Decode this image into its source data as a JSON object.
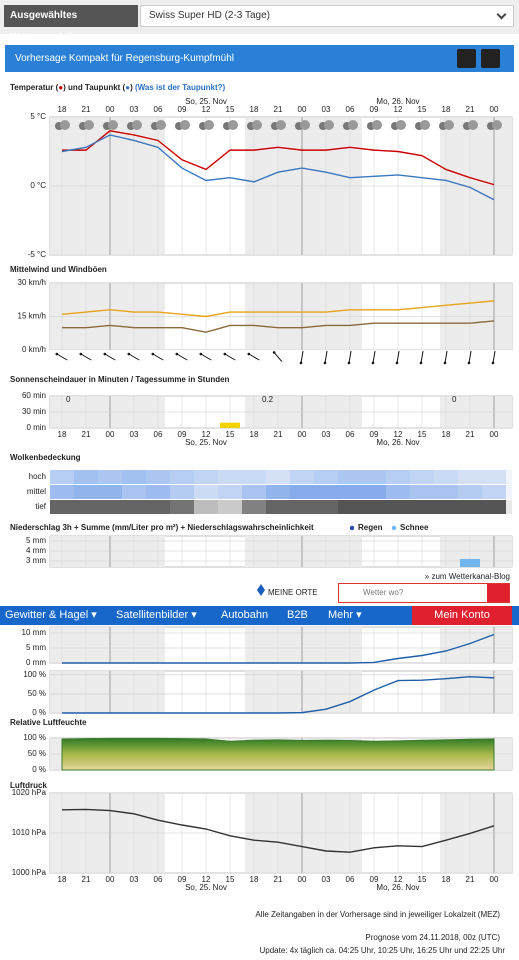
{
  "header": {
    "model_label": "Ausgewähltes Wettermodell:",
    "model_value": "Swiss Super HD (2-3 Tage)",
    "forecast_title": "Vorhersage Kompakt für Regensburg-Kumpfmühl"
  },
  "time_axis": {
    "hours": [
      "18",
      "21",
      "00",
      "03",
      "06",
      "09",
      "12",
      "15",
      "18",
      "21",
      "00",
      "03",
      "06",
      "09",
      "12",
      "15",
      "18",
      "21",
      "00"
    ],
    "days": [
      "So, 25. Nov",
      "Mo, 26. Nov"
    ]
  },
  "chart_data": [
    {
      "type": "line",
      "title_parts": [
        "Temperatur (",
        "●",
        ") und Taupunkt (",
        "●",
        ")"
      ],
      "link": "(Was ist der Taupunkt?)",
      "ylim": [
        -5,
        5
      ],
      "yticks": [
        {
          "value": 5,
          "label": "5 °C"
        },
        {
          "value": 0,
          "label": "0 °C"
        },
        {
          "value": -5,
          "label": "-5 °C"
        }
      ],
      "series": [
        {
          "color": "#cc0000",
          "values": [
            2.6,
            2.6,
            4.0,
            3.7,
            3.3,
            1.9,
            1.2,
            2.6,
            2.6,
            2.8,
            2.6,
            2.6,
            2.8,
            2.6,
            2.5,
            2.2,
            1.2,
            0.6,
            0.1
          ]
        },
        {
          "color": "#3a78c0",
          "values": [
            2.5,
            2.8,
            3.7,
            3.3,
            2.8,
            1.3,
            0.4,
            0.6,
            0.3,
            1.0,
            1.3,
            1.0,
            0.6,
            0.7,
            0.8,
            0.6,
            0.4,
            -0.1,
            -1.0
          ]
        }
      ]
    },
    {
      "type": "line",
      "title": "Mittelwind und Windböen",
      "ylim": [
        0,
        30
      ],
      "yticks": [
        {
          "value": 30,
          "label": "30 km/h"
        },
        {
          "value": 15,
          "label": "15 km/h"
        },
        {
          "value": 0,
          "label": "0 km/h"
        }
      ],
      "series": [
        {
          "color": "#e8a317",
          "values": [
            16,
            17,
            18,
            17,
            17,
            16,
            15,
            17,
            17,
            17,
            17,
            17,
            18,
            18,
            18,
            19,
            20,
            21,
            22
          ]
        },
        {
          "color": "#8a6a3a",
          "values": [
            10,
            10,
            11,
            10,
            10,
            10,
            8,
            11,
            11,
            10,
            10,
            11,
            11,
            12,
            12,
            12,
            12,
            12,
            13
          ]
        }
      ],
      "directions": [
        120,
        120,
        120,
        120,
        120,
        120,
        120,
        120,
        120,
        140,
        10,
        10,
        10,
        10,
        10,
        10,
        10,
        10,
        10
      ]
    },
    {
      "type": "bar",
      "title": "Sonnenscheindauer in Minuten / Tagessumme in Stunden",
      "ylim": [
        0,
        60
      ],
      "yticks": [
        {
          "value": 60,
          "label": "60 min"
        },
        {
          "value": 30,
          "label": "30 min"
        },
        {
          "value": 0,
          "label": "0 min"
        }
      ],
      "color": "#f2d200",
      "values": [
        0,
        0,
        0,
        0,
        0,
        0,
        0,
        10,
        0,
        0,
        0,
        0,
        0,
        0,
        0,
        0,
        0,
        0,
        0
      ],
      "daily_sums": [
        0,
        0.2,
        0
      ]
    },
    {
      "type": "heatmap",
      "title": "Wolkenbedeckung",
      "rows": [
        {
          "name": "hoch",
          "color": "#8fb4ee",
          "values": [
            60,
            80,
            70,
            80,
            70,
            60,
            50,
            40,
            40,
            30,
            50,
            60,
            70,
            70,
            60,
            50,
            40,
            30,
            30
          ]
        },
        {
          "name": "mittel",
          "color": "#7aa4ea",
          "values": [
            70,
            80,
            80,
            60,
            70,
            50,
            30,
            40,
            60,
            80,
            90,
            90,
            90,
            90,
            70,
            60,
            60,
            50,
            40
          ]
        },
        {
          "name": "tief",
          "color": "#555555",
          "values": [
            90,
            90,
            90,
            90,
            90,
            80,
            30,
            20,
            70,
            90,
            90,
            90,
            100,
            100,
            100,
            100,
            100,
            100,
            100
          ]
        }
      ]
    },
    {
      "type": "bar",
      "title": "Niederschlag 3h + Summe (mm/Liter pro m²) + Niederschlagswahrscheinlichkeit",
      "ylim": [
        2.4,
        5.5
      ],
      "yticks": [
        {
          "value": 5,
          "label": "5 mm"
        },
        {
          "value": 4,
          "label": "4 mm"
        },
        {
          "value": 3,
          "label": "3 mm"
        }
      ],
      "series": [
        {
          "name": "Regen",
          "color": "#1f4e9e",
          "values": [
            0,
            0,
            0,
            0,
            0,
            0,
            0,
            0,
            0,
            0,
            0,
            0,
            0,
            0,
            0,
            0,
            0,
            0,
            0
          ]
        },
        {
          "name": "Schnee",
          "color": "#6fb6ef",
          "values": [
            0,
            0,
            0,
            0,
            0,
            0,
            0,
            0,
            0,
            0,
            0,
            0,
            0,
            0,
            0,
            0,
            0,
            3.2,
            0
          ]
        }
      ]
    },
    {
      "type": "line",
      "ylim": [
        0,
        12
      ],
      "yticks": [
        {
          "value": 10,
          "label": "10 mm"
        },
        {
          "value": 5,
          "label": "5 mm"
        },
        {
          "value": 0,
          "label": "0 mm"
        }
      ],
      "series": [
        {
          "color": "#1f5fa8",
          "values": [
            0,
            0,
            0,
            0,
            0,
            0,
            0,
            0,
            0,
            0,
            0,
            0,
            0,
            0.2,
            1.5,
            2.5,
            4,
            6.5,
            9.5
          ]
        }
      ]
    },
    {
      "type": "line",
      "ylim": [
        0,
        110
      ],
      "yticks": [
        {
          "value": 100,
          "label": "100 %"
        },
        {
          "value": 50,
          "label": "50 %"
        },
        {
          "value": 0,
          "label": "0 %"
        }
      ],
      "series": [
        {
          "color": "#1f5fa8",
          "values": [
            0,
            0,
            0,
            0,
            0,
            0,
            0,
            0,
            0,
            0,
            1,
            10,
            30,
            60,
            85,
            86,
            90,
            95,
            92
          ]
        }
      ]
    },
    {
      "type": "area",
      "title": "Relative Luftfeuchte",
      "ylim": [
        0,
        100
      ],
      "yticks": [
        {
          "value": 100,
          "label": "100 %"
        },
        {
          "value": 50,
          "label": "50 %"
        },
        {
          "value": 0,
          "label": "0 %"
        }
      ],
      "series": [
        {
          "color": "#3a7a2a",
          "values": [
            97,
            98,
            99,
            99,
            99,
            98,
            97,
            90,
            93,
            94,
            92,
            93,
            92,
            90,
            91,
            93,
            94,
            96,
            97
          ]
        }
      ]
    },
    {
      "type": "line",
      "title": "Luftdruck",
      "ylim": [
        1000,
        1020
      ],
      "yticks": [
        {
          "value": 1020,
          "label": "1020 hPa"
        },
        {
          "value": 1010,
          "label": "1010 hPa"
        },
        {
          "value": 1000,
          "label": "1000 hPa"
        }
      ],
      "series": [
        {
          "color": "#333333",
          "values": [
            1015.8,
            1015.9,
            1015.6,
            1014.8,
            1013.2,
            1012,
            1011,
            1009.3,
            1008.2,
            1007.7,
            1006.6,
            1005.5,
            1005.2,
            1006.3,
            1006.8,
            1006.6,
            1008.2,
            1009.9,
            1011.8
          ]
        }
      ]
    }
  ],
  "widgets": {
    "blog_link": "» zum Wetterkanal-Blog",
    "my_places": "MEINE ORTE",
    "search_placeholder": "Wetter wo?"
  },
  "nav": {
    "items": [
      "Gewitter & Hagel ▾",
      "Satellitenbilder ▾",
      "Autobahn",
      "B2B",
      "Mehr ▾"
    ],
    "account": "Mein Konto"
  },
  "footer": {
    "note": "Alle Zeitangaben in der Vorhersage sind in jeweiliger Lokalzeit (MEZ)",
    "run": "Prognose vom 24.11.2018, 00z (UTC)",
    "update": "Update: 4x täglich ca. 04:25 Uhr, 10:25 Uhr, 16:25 Uhr und 22:25 Uhr"
  }
}
